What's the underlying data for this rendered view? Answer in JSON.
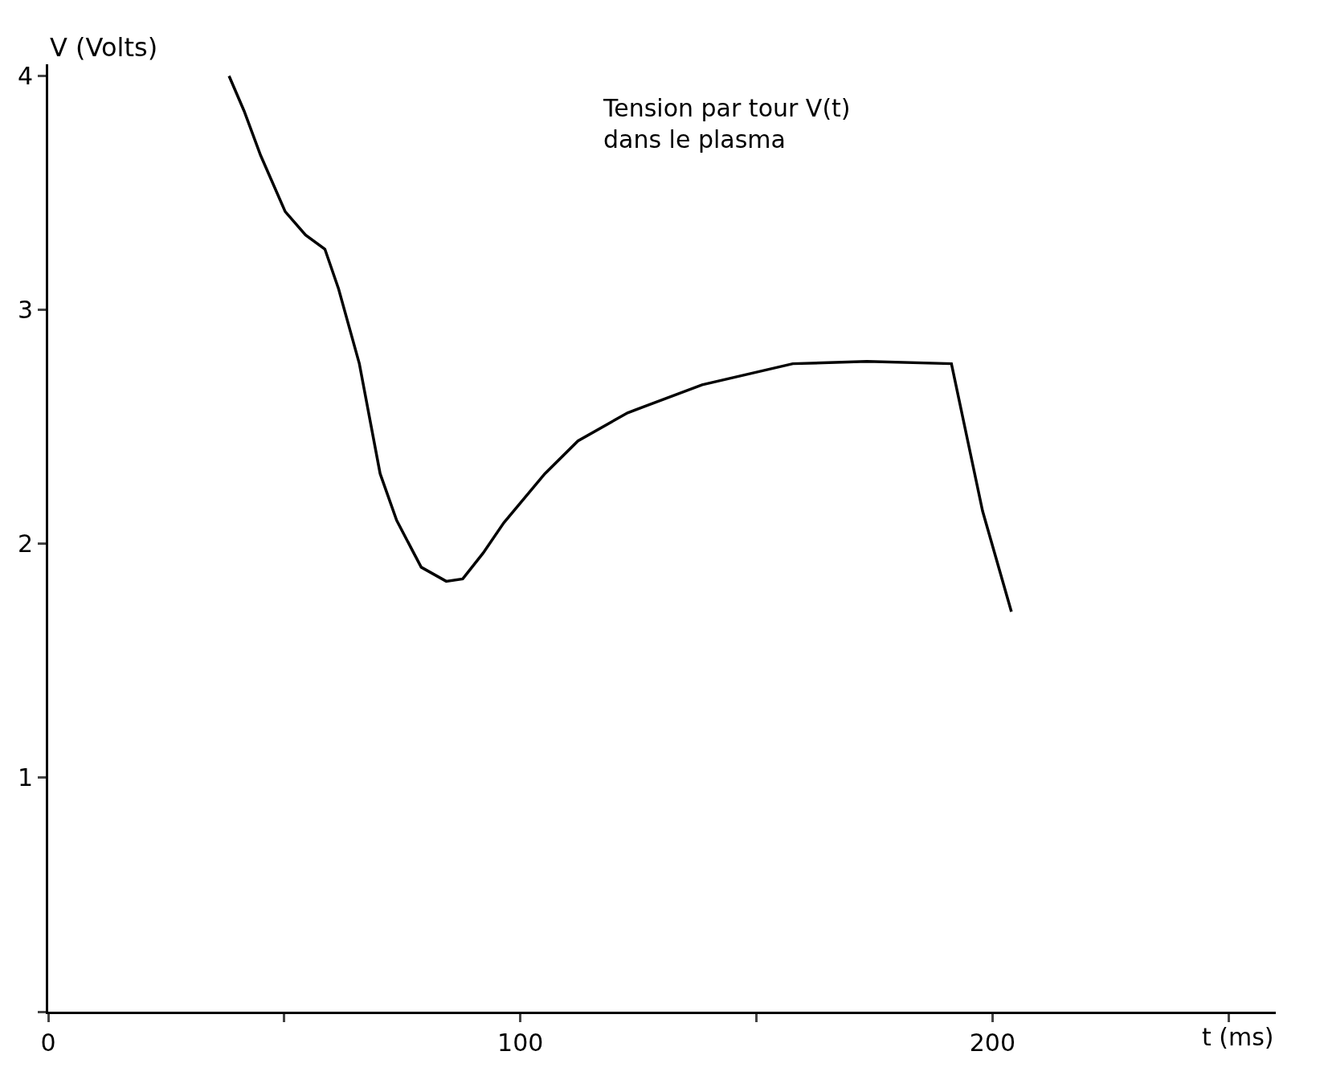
{
  "chart_data": {
    "type": "line",
    "xlabel": "t (ms)",
    "ylabel": "V (Volts)",
    "annotations": [
      "Tension par tour V(t)\ndans le plasma"
    ],
    "x": [
      38.3,
      41.5,
      45,
      50.2,
      54.5,
      58.6,
      61.5,
      65.9,
      70.3,
      73.8,
      79,
      84.3,
      87.8,
      92.1,
      96.5,
      105.2,
      112.2,
      122.7,
      138.5,
      157.7,
      173.4,
      191.3,
      193.5,
      197.9,
      204
    ],
    "series": [
      {
        "color": "#000000",
        "values": [
          4.0,
          3.85,
          3.66,
          3.42,
          3.32,
          3.26,
          3.09,
          2.77,
          2.3,
          2.1,
          1.9,
          1.84,
          1.85,
          1.96,
          2.09,
          2.3,
          2.44,
          2.56,
          2.68,
          2.77,
          2.78,
          2.77,
          2.56,
          2.14,
          1.71
        ]
      }
    ],
    "xlim": [
      0,
      260
    ],
    "ylim": [
      0,
      4.05
    ],
    "xticks": [
      0,
      {
        "value": 50,
        "label": null
      },
      100,
      {
        "value": 150,
        "label": null
      },
      200,
      {
        "value": 250,
        "label": null
      }
    ],
    "yticks": [
      {
        "value": 0,
        "label": null
      },
      1,
      2,
      3,
      4
    ],
    "grid": false,
    "marker": "none",
    "line_style": "solid"
  }
}
